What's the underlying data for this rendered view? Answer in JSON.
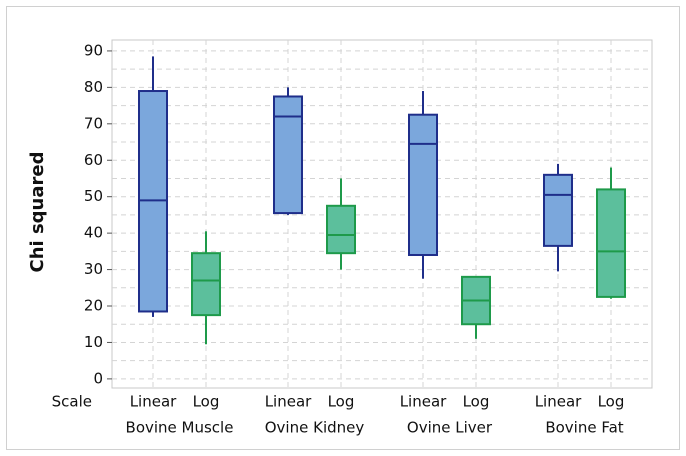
{
  "chart_data": {
    "type": "box",
    "y_label": "Chi squared",
    "x_label": "Scale",
    "categories": [
      "Bovine Muscle",
      "Ovine Kidney",
      "Ovine Liver",
      "Bovine Fat"
    ],
    "series": [
      {
        "name": "Linear",
        "color": "#7ba7dc",
        "edge_color": "#1f2e8a",
        "values": [
          {
            "min": 17,
            "q1": 18.5,
            "median": 49,
            "q3": 79,
            "max": 88.5
          },
          {
            "min": 45,
            "q1": 45.5,
            "median": 72,
            "q3": 77.5,
            "max": 80
          },
          {
            "min": 27.5,
            "q1": 34,
            "median": 64.5,
            "q3": 72.5,
            "max": 79
          },
          {
            "min": 29.5,
            "q1": 36.5,
            "median": 50.5,
            "q3": 56,
            "max": 59
          }
        ]
      },
      {
        "name": "Log",
        "color": "#5cbf9c",
        "edge_color": "#1e9a4a",
        "values": [
          {
            "min": 9.5,
            "q1": 17.5,
            "median": 27,
            "q3": 34.5,
            "max": 40.5
          },
          {
            "min": 30,
            "q1": 34.5,
            "median": 39.5,
            "q3": 47.5,
            "max": 55
          },
          {
            "min": 11,
            "q1": 15,
            "median": 21.5,
            "q3": 28,
            "max": 28
          },
          {
            "min": 22,
            "q1": 22.5,
            "median": 35,
            "q3": 52,
            "max": 58
          }
        ]
      }
    ],
    "ylim": [
      -2.5,
      93
    ],
    "yticks": [
      0,
      10,
      20,
      30,
      40,
      50,
      60,
      70,
      80,
      90
    ],
    "minor_yticks": [
      5,
      15,
      25,
      35,
      45,
      55,
      65,
      75,
      85
    ],
    "grid": true
  }
}
